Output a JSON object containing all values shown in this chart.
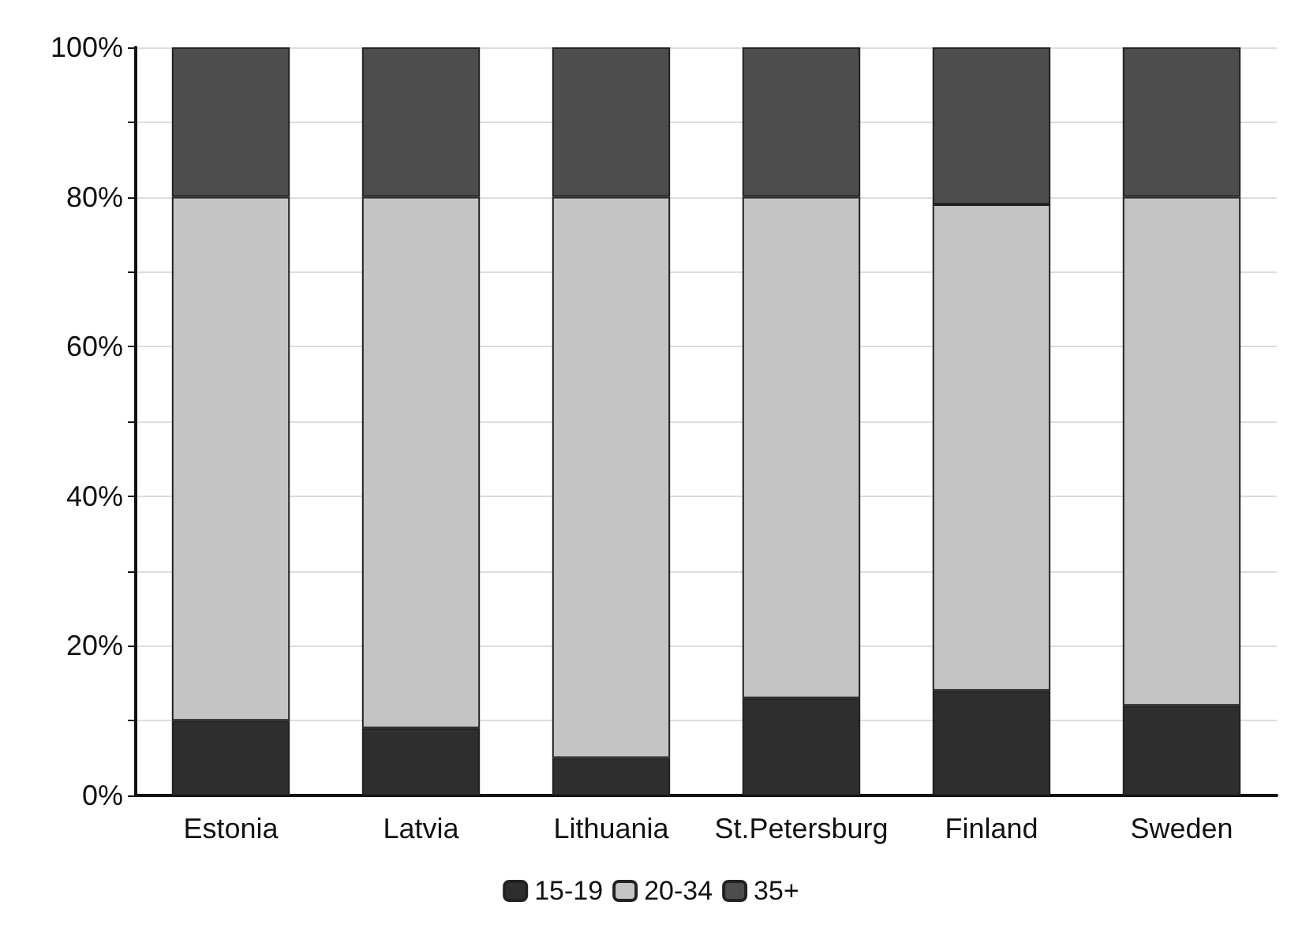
{
  "chart_data": {
    "type": "bar",
    "stacked": true,
    "categories": [
      "Estonia",
      "Latvia",
      "Lithuania",
      "St.Petersburg",
      "Finland",
      "Sweden"
    ],
    "series": [
      {
        "name": "15-19",
        "color": "#2e2e2e",
        "values": [
          10,
          9,
          5,
          13,
          14,
          12
        ]
      },
      {
        "name": "20-34",
        "color": "#c4c4c4",
        "values": [
          70,
          71,
          75,
          67,
          65,
          68
        ]
      },
      {
        "name": "35+",
        "color": "#4d4d4d",
        "values": [
          20,
          20,
          20,
          20,
          21,
          20
        ]
      }
    ],
    "ylim": [
      0,
      100
    ],
    "yticks": [
      {
        "value": 0,
        "label": "0%"
      },
      {
        "value": 10,
        "label": null
      },
      {
        "value": 20,
        "label": "20%"
      },
      {
        "value": 30,
        "label": null
      },
      {
        "value": 40,
        "label": "40%"
      },
      {
        "value": 50,
        "label": null
      },
      {
        "value": 60,
        "label": "60%"
      },
      {
        "value": 70,
        "label": null
      },
      {
        "value": 80,
        "label": "80%"
      },
      {
        "value": 90,
        "label": null
      },
      {
        "value": 100,
        "label": "100%"
      }
    ],
    "grid": "y",
    "legend": "bottom"
  }
}
